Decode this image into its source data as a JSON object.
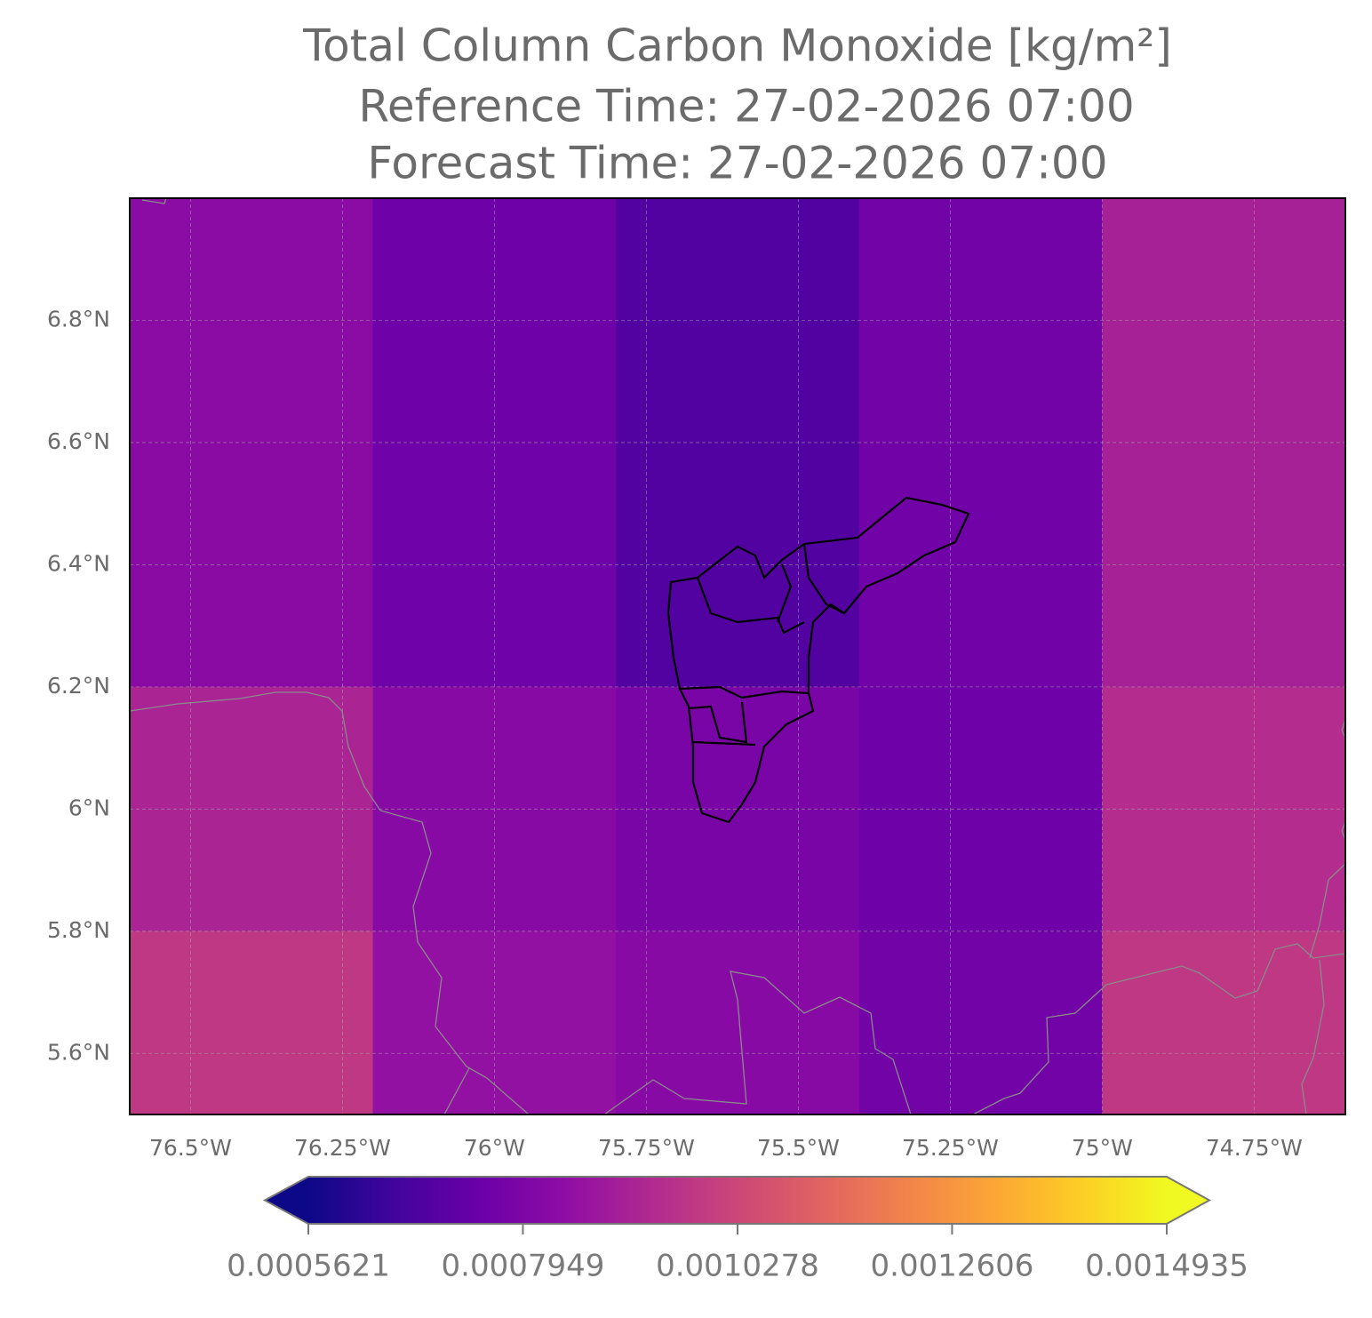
{
  "chart_data": {
    "type": "heatmap",
    "title": [
      "Total Column Carbon Monoxide [kg/m²]",
      "Reference Time: 27-02-2026 07:00",
      "Forecast Time: 27-02-2026 07:00"
    ],
    "lon_edges": [
      -76.6,
      -76.2,
      -75.8,
      -75.4,
      -75.0,
      -74.6
    ],
    "lat_edges": [
      7.0,
      6.6,
      6.2,
      5.8,
      5.5
    ],
    "values": [
      [
        0.000832,
        0.000758,
        0.000693,
        0.000767,
        0.000907
      ],
      [
        0.00083,
        0.00076,
        0.000695,
        0.000765,
        0.000905
      ],
      [
        0.000916,
        0.000823,
        0.000786,
        0.000758,
        0.000944
      ],
      [
        0.000981,
        0.000851,
        0.000823,
        0.000767,
        0.000981
      ]
    ],
    "xlim": [
      -76.6,
      -74.6
    ],
    "ylim": [
      5.5,
      7.0
    ],
    "xticks": [
      {
        "value": -76.5,
        "label": "76.5°W"
      },
      {
        "value": -76.25,
        "label": "76.25°W"
      },
      {
        "value": -76.0,
        "label": "76°W"
      },
      {
        "value": -75.75,
        "label": "75.75°W"
      },
      {
        "value": -75.5,
        "label": "75.5°W"
      },
      {
        "value": -75.25,
        "label": "75.25°W"
      },
      {
        "value": -75.0,
        "label": "75°W"
      },
      {
        "value": -74.75,
        "label": "74.75°W"
      }
    ],
    "yticks": [
      {
        "value": 6.8,
        "label": "6.8°N"
      },
      {
        "value": 6.6,
        "label": "6.6°N"
      },
      {
        "value": 6.4,
        "label": "6.4°N"
      },
      {
        "value": 6.2,
        "label": "6.2°N"
      },
      {
        "value": 6.0,
        "label": "6°N"
      },
      {
        "value": 5.8,
        "label": "5.8°N"
      },
      {
        "value": 5.6,
        "label": "5.6°N"
      }
    ],
    "grid": true,
    "colormap": [
      "#0d0887",
      "#41049d",
      "#6a00a8",
      "#8f0da4",
      "#b12a90",
      "#cc4778",
      "#e16462",
      "#f2844b",
      "#fca636",
      "#fcce25",
      "#f0f921"
    ],
    "clim": [
      0.0005621,
      0.0014935
    ],
    "colorbar_ticks": [
      0.0005621,
      0.0007949,
      0.0010278,
      0.0012606,
      0.0014935
    ]
  }
}
